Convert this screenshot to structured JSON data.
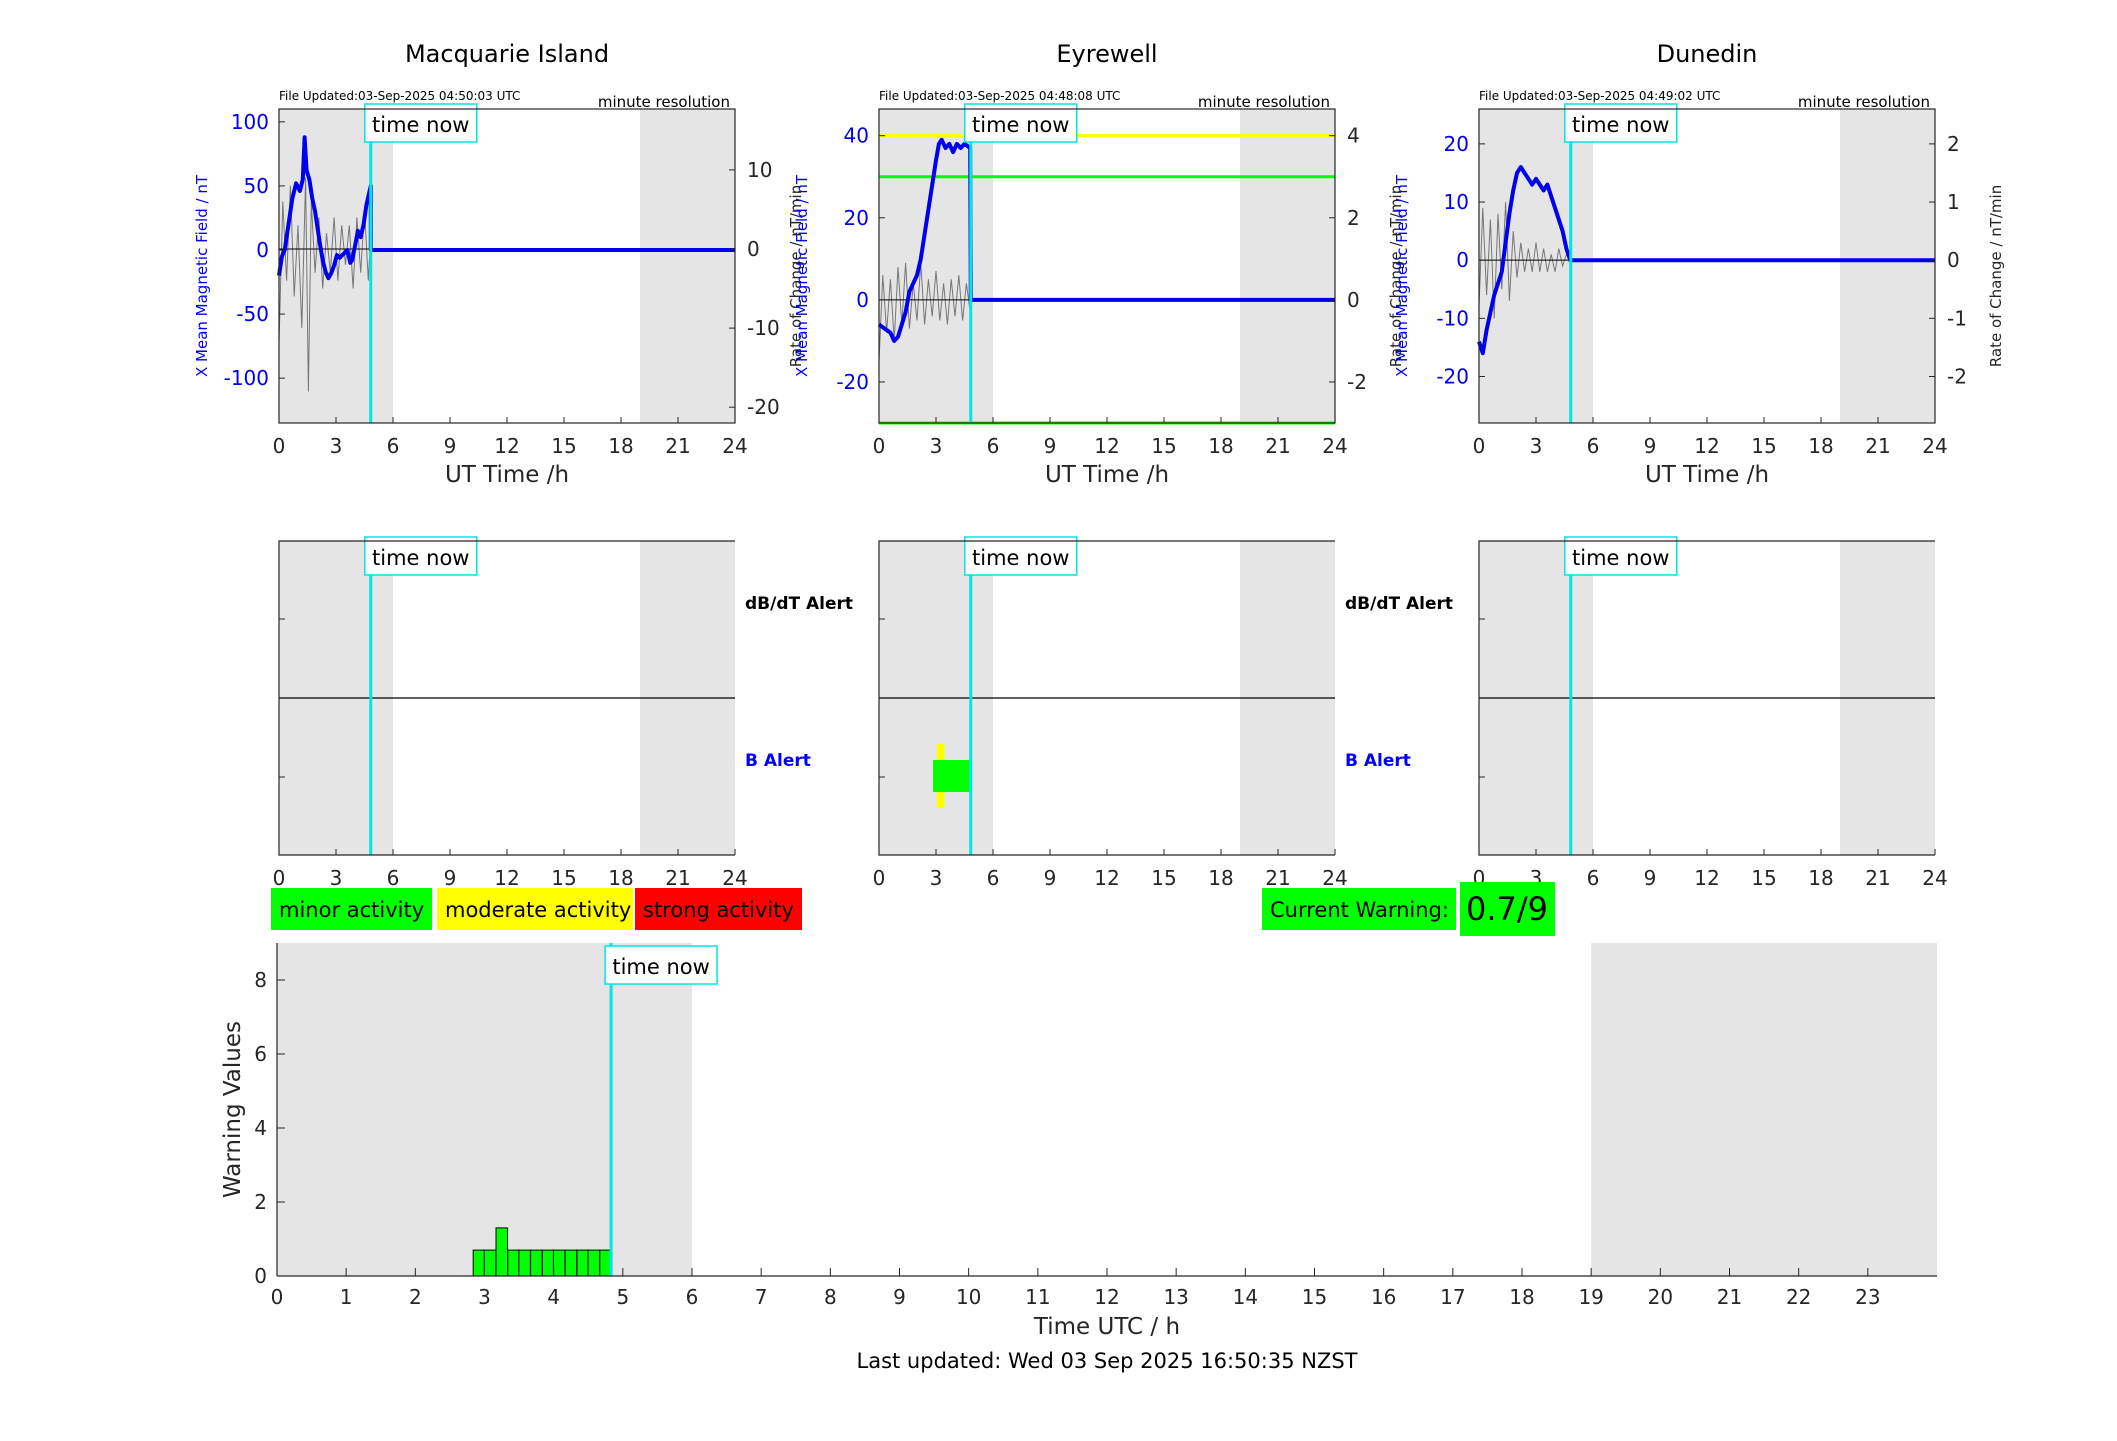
{
  "stations": [
    {
      "title": "Macquarie Island",
      "file_updated": "File Updated:03-Sep-2025 04:50:03 UTC",
      "resolution": "minute resolution",
      "left_label": "X Mean Magnetic Field / nT",
      "right_label": "Rate of Change / nT/min",
      "left_ylim": [
        -135,
        110
      ],
      "left_ticks": [
        -100,
        -50,
        0,
        50,
        100
      ],
      "right_ylim": [
        -22,
        17.7
      ],
      "right_ticks": [
        -20,
        -10,
        0,
        10
      ],
      "thresholds": [],
      "trace": [
        [
          0,
          -20
        ],
        [
          0.15,
          -5
        ],
        [
          0.3,
          0
        ],
        [
          0.5,
          20
        ],
        [
          0.7,
          40
        ],
        [
          0.9,
          52
        ],
        [
          1.1,
          46
        ],
        [
          1.25,
          55
        ],
        [
          1.35,
          88
        ],
        [
          1.45,
          62
        ],
        [
          1.6,
          55
        ],
        [
          1.75,
          40
        ],
        [
          1.9,
          30
        ],
        [
          2.0,
          20
        ],
        [
          2.15,
          5
        ],
        [
          2.3,
          -8
        ],
        [
          2.45,
          -17
        ],
        [
          2.6,
          -22
        ],
        [
          2.75,
          -18
        ],
        [
          2.9,
          -12
        ],
        [
          3.05,
          -4
        ],
        [
          3.2,
          -6
        ],
        [
          3.4,
          -3
        ],
        [
          3.6,
          0
        ],
        [
          3.75,
          -10
        ],
        [
          3.85,
          -8
        ],
        [
          4.0,
          3
        ],
        [
          4.15,
          15
        ],
        [
          4.3,
          10
        ],
        [
          4.45,
          20
        ],
        [
          4.6,
          35
        ],
        [
          4.75,
          45
        ],
        [
          4.83,
          50
        ]
      ],
      "rate_trace": [
        [
          0,
          -12
        ],
        [
          0.2,
          6
        ],
        [
          0.4,
          -4
        ],
        [
          0.6,
          8
        ],
        [
          0.8,
          -6
        ],
        [
          1.0,
          3
        ],
        [
          1.2,
          -10
        ],
        [
          1.4,
          9
        ],
        [
          1.55,
          -18
        ],
        [
          1.7,
          6
        ],
        [
          1.9,
          -3
        ],
        [
          2.1,
          4
        ],
        [
          2.3,
          -5
        ],
        [
          2.5,
          2
        ],
        [
          2.7,
          -3
        ],
        [
          2.9,
          4
        ],
        [
          3.1,
          -4
        ],
        [
          3.3,
          3
        ],
        [
          3.5,
          -2
        ],
        [
          3.7,
          3
        ],
        [
          3.9,
          -5
        ],
        [
          4.1,
          4
        ],
        [
          4.3,
          -3
        ],
        [
          4.5,
          5
        ],
        [
          4.7,
          -4
        ],
        [
          4.83,
          2
        ]
      ],
      "b_alerts": []
    },
    {
      "title": "Eyrewell",
      "file_updated": "File Updated:03-Sep-2025 04:48:08 UTC",
      "resolution": "minute resolution",
      "left_label": "X Mean Magnetic Field / nT",
      "right_label": "Rate of Change / nT/min",
      "left_ylim": [
        -30,
        46.5
      ],
      "left_ticks": [
        -20,
        0,
        20,
        40
      ],
      "right_ylim": [
        -3,
        4.65
      ],
      "right_ticks": [
        -2,
        0,
        2,
        4
      ],
      "thresholds": [
        {
          "value": 40,
          "color": "#ffff00"
        },
        {
          "value": 30,
          "color": "#00ff00"
        },
        {
          "value": -30,
          "color": "#00ff00"
        }
      ],
      "trace": [
        [
          0,
          -6
        ],
        [
          0.3,
          -7
        ],
        [
          0.6,
          -8
        ],
        [
          0.8,
          -10
        ],
        [
          1.0,
          -9
        ],
        [
          1.2,
          -6
        ],
        [
          1.4,
          -3
        ],
        [
          1.6,
          2
        ],
        [
          1.8,
          4
        ],
        [
          2.0,
          6
        ],
        [
          2.2,
          10
        ],
        [
          2.4,
          16
        ],
        [
          2.6,
          22
        ],
        [
          2.8,
          28
        ],
        [
          3.0,
          34
        ],
        [
          3.15,
          38
        ],
        [
          3.3,
          39
        ],
        [
          3.5,
          37
        ],
        [
          3.7,
          38
        ],
        [
          3.9,
          36
        ],
        [
          4.1,
          38
        ],
        [
          4.3,
          37
        ],
        [
          4.5,
          38
        ],
        [
          4.8,
          37
        ]
      ],
      "rate_trace": [
        [
          0,
          -1.5
        ],
        [
          0.2,
          0.6
        ],
        [
          0.4,
          -0.8
        ],
        [
          0.6,
          0.5
        ],
        [
          0.8,
          -1.0
        ],
        [
          1.0,
          0.8
        ],
        [
          1.2,
          -0.6
        ],
        [
          1.4,
          0.9
        ],
        [
          1.6,
          -0.7
        ],
        [
          1.8,
          0.4
        ],
        [
          2.0,
          -0.5
        ],
        [
          2.2,
          0.9
        ],
        [
          2.4,
          -0.6
        ],
        [
          2.6,
          0.5
        ],
        [
          2.8,
          -0.4
        ],
        [
          3.0,
          0.7
        ],
        [
          3.2,
          -0.5
        ],
        [
          3.4,
          0.4
        ],
        [
          3.6,
          -0.6
        ],
        [
          3.8,
          0.5
        ],
        [
          4.0,
          -0.4
        ],
        [
          4.2,
          0.6
        ],
        [
          4.4,
          -0.5
        ],
        [
          4.6,
          0.4
        ],
        [
          4.8,
          -0.3
        ]
      ],
      "b_alerts": [
        {
          "start": 2.85,
          "end": 4.85,
          "level": "minor",
          "color": "#00ff00"
        },
        {
          "start": 3.05,
          "end": 3.45,
          "level": "moderate",
          "color": "#ffff00"
        }
      ]
    },
    {
      "title": "Dunedin",
      "file_updated": "File Updated:03-Sep-2025 04:49:02 UTC",
      "resolution": "minute resolution",
      "left_label": "X Mean Magnetic Field / nT",
      "right_label": "Rate of Change / nT/min",
      "left_ylim": [
        -28,
        26
      ],
      "left_ticks": [
        -20,
        -10,
        0,
        10,
        20
      ],
      "right_ylim": [
        -2.8,
        2.6
      ],
      "right_ticks": [
        -2,
        -1,
        0,
        1,
        2
      ],
      "thresholds": [],
      "trace": [
        [
          0,
          -14
        ],
        [
          0.2,
          -16
        ],
        [
          0.4,
          -12
        ],
        [
          0.6,
          -9
        ],
        [
          0.8,
          -6
        ],
        [
          1.0,
          -4
        ],
        [
          1.2,
          -2
        ],
        [
          1.4,
          3
        ],
        [
          1.6,
          8
        ],
        [
          1.8,
          12
        ],
        [
          2.0,
          15
        ],
        [
          2.2,
          16
        ],
        [
          2.4,
          15
        ],
        [
          2.6,
          14
        ],
        [
          2.8,
          13
        ],
        [
          3.0,
          14
        ],
        [
          3.2,
          13
        ],
        [
          3.4,
          12
        ],
        [
          3.6,
          13
        ],
        [
          3.8,
          11
        ],
        [
          4.0,
          9
        ],
        [
          4.2,
          7
        ],
        [
          4.4,
          5
        ],
        [
          4.6,
          2
        ],
        [
          4.8,
          0
        ]
      ],
      "rate_trace": [
        [
          0,
          -0.8
        ],
        [
          0.2,
          0.9
        ],
        [
          0.4,
          -0.6
        ],
        [
          0.6,
          0.7
        ],
        [
          0.8,
          -1.0
        ],
        [
          1.0,
          0.8
        ],
        [
          1.2,
          -0.5
        ],
        [
          1.4,
          1.0
        ],
        [
          1.6,
          -0.7
        ],
        [
          1.8,
          0.5
        ],
        [
          2.0,
          -0.3
        ],
        [
          2.2,
          0.3
        ],
        [
          2.4,
          -0.2
        ],
        [
          2.6,
          0.2
        ],
        [
          2.8,
          -0.2
        ],
        [
          3.0,
          0.3
        ],
        [
          3.2,
          -0.2
        ],
        [
          3.4,
          0.2
        ],
        [
          3.6,
          -0.2
        ],
        [
          3.8,
          0.1
        ],
        [
          4.0,
          -0.2
        ],
        [
          4.2,
          0.2
        ],
        [
          4.4,
          -0.1
        ],
        [
          4.6,
          0.1
        ],
        [
          4.8,
          0
        ]
      ],
      "b_alerts": []
    }
  ],
  "shared": {
    "x_label": "UT Time /h",
    "x_ticks": [
      0,
      3,
      6,
      9,
      12,
      15,
      18,
      21,
      24
    ],
    "xlim": [
      0,
      24
    ],
    "time_now_label": "time now",
    "time_now_hours": 4.83,
    "night_shading": [
      [
        0,
        6
      ],
      [
        19,
        24
      ]
    ],
    "dbdt_alert_label": "dB/dT Alert",
    "b_alert_label": "B Alert",
    "b_alert_color": "#0000ff"
  },
  "legend": [
    {
      "label": "minor activity",
      "color": "#00ff00"
    },
    {
      "label": "moderate activity",
      "color": "#ffff00"
    },
    {
      "label": "strong activity",
      "color": "#ff0000"
    }
  ],
  "current_warning": {
    "label": "Current Warning:",
    "value": "0.7/9",
    "color": "#00ff00"
  },
  "chart_data": {
    "type": "bar",
    "xlabel": "Time UTC / h",
    "ylabel": "Warning Values",
    "xlim": [
      0,
      24
    ],
    "ylim": [
      0,
      9
    ],
    "x_ticks": [
      0,
      1,
      2,
      3,
      4,
      5,
      6,
      7,
      8,
      9,
      10,
      11,
      12,
      13,
      14,
      15,
      16,
      17,
      18,
      19,
      20,
      21,
      22,
      23
    ],
    "y_ticks": [
      0,
      2,
      4,
      6,
      8
    ],
    "bar_width_hours": 0.167,
    "bar_color": "#00ff00",
    "x": [
      2.92,
      3.08,
      3.25,
      3.42,
      3.58,
      3.75,
      3.92,
      4.08,
      4.25,
      4.42,
      4.58,
      4.75
    ],
    "values": [
      0.7,
      0.7,
      1.3,
      0.7,
      0.7,
      0.7,
      0.7,
      0.7,
      0.7,
      0.7,
      0.7,
      0.7
    ],
    "time_now_hours": 4.83,
    "time_now_label": "time now",
    "night_shading": [
      [
        0,
        6
      ],
      [
        19,
        24
      ]
    ]
  },
  "footer": {
    "last_updated": "Last updated: Wed 03 Sep 2025 16:50:35 NZST"
  }
}
